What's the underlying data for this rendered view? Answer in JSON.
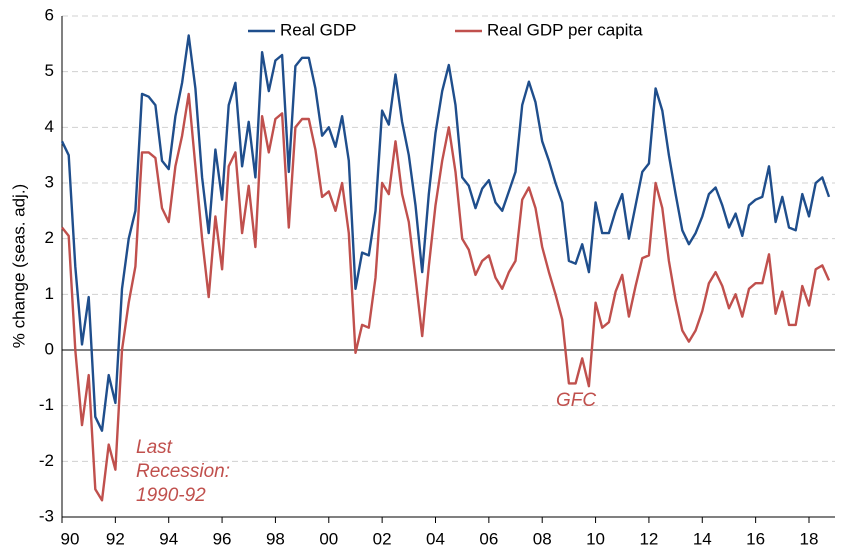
{
  "chart_data": {
    "type": "line",
    "ylabel": "% change (seas. adj.)",
    "categories": [
      "90",
      null,
      null,
      null,
      null,
      null,
      null,
      null,
      "92",
      null,
      null,
      null,
      null,
      null,
      null,
      null,
      "94",
      null,
      null,
      null,
      null,
      null,
      null,
      null,
      "96",
      null,
      null,
      null,
      null,
      null,
      null,
      null,
      "98",
      null,
      null,
      null,
      null,
      null,
      null,
      null,
      "00",
      null,
      null,
      null,
      null,
      null,
      null,
      null,
      "02",
      null,
      null,
      null,
      null,
      null,
      null,
      null,
      "04",
      null,
      null,
      null,
      null,
      null,
      null,
      null,
      "06",
      null,
      null,
      null,
      null,
      null,
      null,
      null,
      "08",
      null,
      null,
      null,
      null,
      null,
      null,
      null,
      "10",
      null,
      null,
      null,
      null,
      null,
      null,
      null,
      "12",
      null,
      null,
      null,
      null,
      null,
      null,
      null,
      "14",
      null,
      null,
      null,
      null,
      null,
      null,
      null,
      "16",
      null,
      null,
      null,
      null,
      null,
      null,
      null,
      "18",
      null,
      null,
      null
    ],
    "series": [
      {
        "name": "Real GDP",
        "color": "#1f4e8c",
        "values": [
          3.75,
          3.5,
          1.5,
          0.1,
          0.95,
          -1.2,
          -1.45,
          -0.45,
          -0.95,
          1.1,
          2.0,
          2.5,
          4.6,
          4.55,
          4.4,
          3.4,
          3.25,
          4.2,
          4.8,
          5.65,
          4.7,
          3.1,
          2.1,
          3.6,
          2.7,
          4.4,
          4.8,
          3.3,
          4.1,
          3.1,
          5.35,
          4.65,
          5.2,
          5.3,
          3.2,
          5.1,
          5.25,
          5.25,
          4.7,
          3.85,
          4.0,
          3.65,
          4.2,
          3.4,
          1.1,
          1.75,
          1.7,
          2.5,
          4.3,
          4.05,
          4.95,
          4.1,
          3.5,
          2.6,
          1.4,
          2.8,
          3.9,
          4.65,
          5.12,
          4.4,
          3.1,
          2.95,
          2.55,
          2.9,
          3.05,
          2.65,
          2.5,
          2.85,
          3.2,
          4.4,
          4.82,
          4.45,
          3.75,
          3.4,
          3.0,
          2.65,
          1.6,
          1.55,
          1.9,
          1.4,
          2.65,
          2.1,
          2.1,
          2.5,
          2.8,
          2.0,
          2.6,
          3.2,
          3.35,
          4.7,
          4.3,
          3.5,
          2.8,
          2.15,
          1.9,
          2.1,
          2.4,
          2.8,
          2.92,
          2.6,
          2.2,
          2.45,
          2.05,
          2.6,
          2.7,
          2.75,
          3.3,
          2.3,
          2.75,
          2.2,
          2.15,
          2.8,
          2.4,
          3.0,
          3.1,
          2.75
        ]
      },
      {
        "name": "Real GDP per capita",
        "color": "#c0504d",
        "values": [
          2.2,
          2.05,
          0,
          -1.35,
          -0.45,
          -2.5,
          -2.7,
          -1.7,
          -2.15,
          0,
          0.85,
          1.5,
          3.55,
          3.55,
          3.45,
          2.55,
          2.3,
          3.3,
          3.85,
          4.6,
          3.3,
          2.0,
          0.95,
          2.4,
          1.45,
          3.3,
          3.55,
          2.1,
          2.95,
          1.85,
          4.2,
          3.55,
          4.15,
          4.25,
          2.2,
          4.0,
          4.15,
          4.15,
          3.6,
          2.75,
          2.85,
          2.5,
          3.0,
          2.1,
          -0.05,
          0.45,
          0.4,
          1.3,
          3.0,
          2.8,
          3.75,
          2.8,
          2.3,
          1.3,
          0.25,
          1.5,
          2.6,
          3.4,
          4.0,
          3.2,
          2.0,
          1.8,
          1.35,
          1.6,
          1.7,
          1.3,
          1.1,
          1.4,
          1.6,
          2.7,
          2.92,
          2.55,
          1.85,
          1.4,
          1.0,
          0.55,
          -0.6,
          -0.6,
          -0.15,
          -0.65,
          0.85,
          0.4,
          0.5,
          1.05,
          1.35,
          0.6,
          1.15,
          1.65,
          1.7,
          3.0,
          2.55,
          1.6,
          0.9,
          0.35,
          0.15,
          0.35,
          0.7,
          1.2,
          1.4,
          1.15,
          0.75,
          1.0,
          0.6,
          1.1,
          1.2,
          1.2,
          1.72,
          0.65,
          1.05,
          0.45,
          0.45,
          1.15,
          0.8,
          1.45,
          1.52,
          1.25
        ]
      }
    ],
    "annotations": [
      {
        "lines": [
          "Last",
          "Recession:",
          "1990-92"
        ]
      },
      {
        "lines": [
          "GFC"
        ]
      }
    ],
    "ylim": [
      -3,
      6
    ],
    "yticks": [
      -3,
      -2,
      -1,
      0,
      1,
      2,
      3,
      4,
      5,
      6
    ],
    "grid": true,
    "legend": "top"
  }
}
